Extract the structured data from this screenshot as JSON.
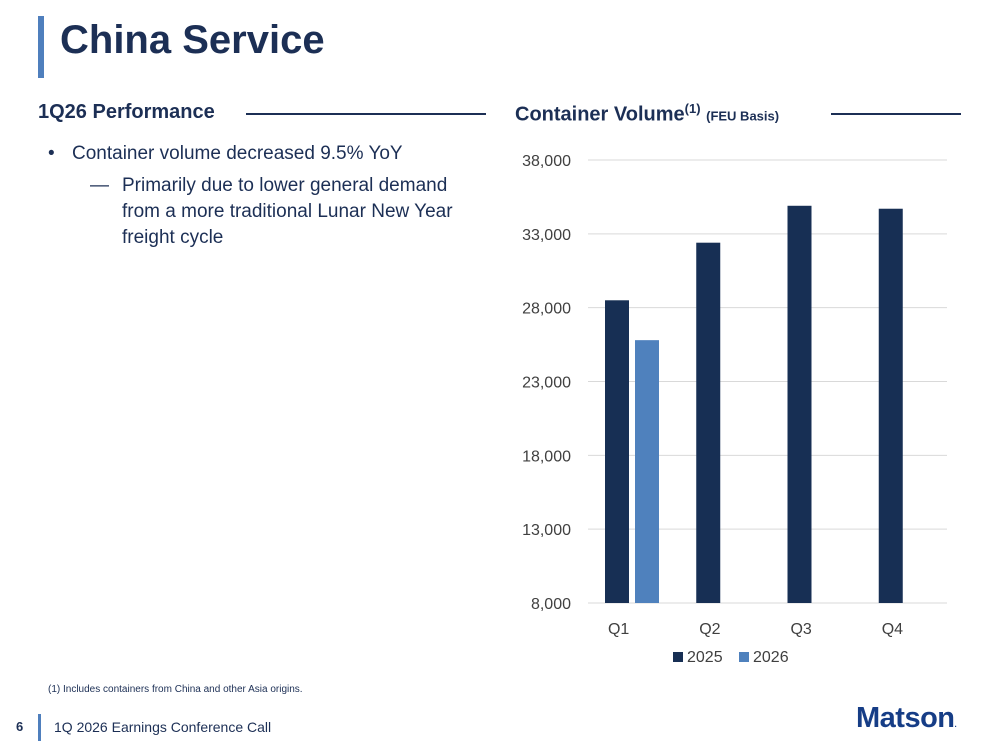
{
  "page": {
    "title": "China Service",
    "left_heading": "1Q26 Performance",
    "right_heading": "Container Volume",
    "right_heading_sup": "(1)",
    "right_heading_note": "(FEU Basis)",
    "bullet_marker": "•",
    "sub_marker": "—",
    "bullets": [
      {
        "text": "Container volume decreased 9.5% YoY",
        "sub": "Primarily due to lower general demand from a more traditional Lunar New Year freight cycle"
      }
    ],
    "footnote": "(1)  Includes containers from China and other Asia origins.",
    "footer": {
      "page_number": "6",
      "text": "1Q 2026 Earnings Conference Call",
      "logo": "Matson",
      "logo_mark": "."
    }
  },
  "colors": {
    "primary": "#1c2f55",
    "accent": "#4f7fbd",
    "series_2025": "#172f54",
    "series_2026": "#4f81bd",
    "grid": "#d9d9d9"
  },
  "chart_data": {
    "type": "bar",
    "categories": [
      "Q1",
      "Q2",
      "Q3",
      "Q4"
    ],
    "series": [
      {
        "name": "2025",
        "values": [
          28500,
          32400,
          34900,
          34700
        ]
      },
      {
        "name": "2026",
        "values": [
          25800,
          null,
          null,
          null
        ]
      }
    ],
    "ylim": [
      8000,
      38000
    ],
    "yticks": [
      8000,
      13000,
      18000,
      23000,
      28000,
      33000,
      38000
    ],
    "ytick_labels": [
      "8,000",
      "13,000",
      "18,000",
      "23,000",
      "28,000",
      "33,000",
      "38,000"
    ],
    "grid": true,
    "legend": "bottom"
  }
}
